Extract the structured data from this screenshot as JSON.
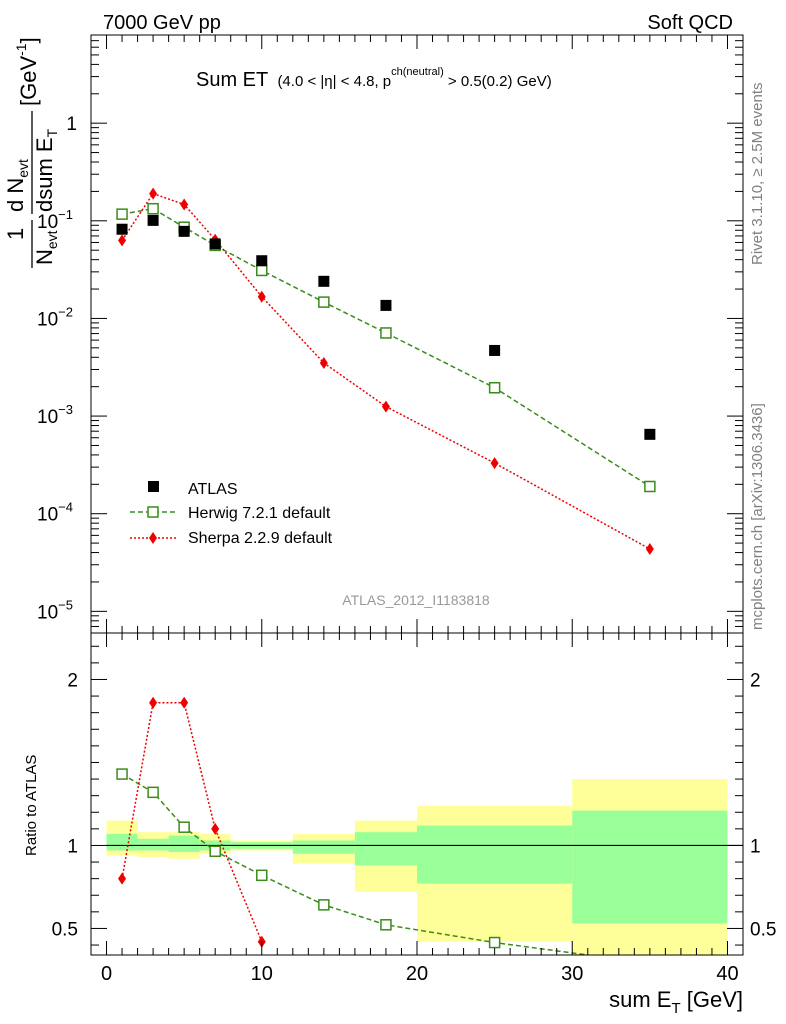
{
  "header": {
    "left": "7000 GeV pp",
    "right": "Soft QCD"
  },
  "side_labels": {
    "rivet": "Rivet 3.1.10, ≥ 2.5M events",
    "mcplots": "mcplots.cern.ch [arXiv:1306.3436]"
  },
  "colors": {
    "atlas": "#000000",
    "herwig": "#3a8c1a",
    "sherpa": "#ee0000",
    "band_inner": "#99ff99",
    "band_outer": "#ffff99"
  },
  "chart_data": [
    {
      "type": "scatter",
      "title": {
        "main": "Sum ET",
        "detail_a": "(4.0 < |",
        "eta": "η",
        "detail_b": "| < 4.8, p",
        "sup": "ch(neutral)",
        "detail_c": " > 0.5(0.2) GeV)"
      },
      "ylabel": {
        "one": "1",
        "n": "N",
        "evt": "evt",
        "d": "d N",
        "dsum": "dsum E",
        "t": "T",
        "unit": "[GeV",
        "exp": "-1",
        "close": "]"
      },
      "watermark": "ATLAS_2012_I1183818",
      "yscale": "log",
      "xlim": [
        -1,
        41
      ],
      "ylim": [
        6e-06,
        8
      ],
      "y_tick_labels": [
        {
          "v": 1e-05,
          "base": "10",
          "exp": "−5"
        },
        {
          "v": 0.0001,
          "base": "10",
          "exp": "−4"
        },
        {
          "v": 0.001,
          "base": "10",
          "exp": "−3"
        },
        {
          "v": 0.01,
          "base": "10",
          "exp": "−2"
        },
        {
          "v": 0.1,
          "base": "10",
          "exp": "−1"
        },
        {
          "v": 1,
          "base": "1",
          "exp": ""
        }
      ],
      "legend_position": "bottom-left",
      "series": [
        {
          "name": "ATLAS",
          "marker": "square-filled",
          "x": [
            1,
            3,
            5,
            7,
            10,
            14,
            18,
            25,
            35
          ],
          "y": [
            0.082,
            0.101,
            0.078,
            0.058,
            0.039,
            0.024,
            0.0136,
            0.0047,
            0.00065
          ]
        },
        {
          "name": "Herwig 7.2.1 default",
          "marker": "square-open",
          "line": "dashed",
          "x": [
            1,
            3,
            5,
            7,
            10,
            14,
            18,
            25,
            35
          ],
          "y": [
            0.117,
            0.133,
            0.086,
            0.056,
            0.031,
            0.0147,
            0.0071,
            0.00195,
            0.00019
          ]
        },
        {
          "name": "Sherpa 2.2.9 default",
          "marker": "diamond-filled",
          "line": "dotted",
          "x": [
            1,
            3,
            5,
            7,
            10,
            14,
            18,
            25,
            35
          ],
          "y": [
            0.063,
            0.19,
            0.147,
            0.064,
            0.0167,
            0.0035,
            0.00125,
            0.00033,
            4.35e-05
          ]
        }
      ]
    },
    {
      "type": "scatter",
      "ylabel": "Ratio to ATLAS",
      "xlabel": {
        "main": "sum E",
        "sub": "T",
        "unit": " [GeV]"
      },
      "xlim": [
        -1,
        41
      ],
      "ylim": [
        0.34,
        2.28
      ],
      "x_ticks": [
        "0",
        "10",
        "20",
        "30",
        "40"
      ],
      "x_tick_values": [
        0,
        10,
        20,
        30,
        40
      ],
      "y_ticks": [
        "0.5",
        "1",
        "2"
      ],
      "y_tick_values": [
        0.5,
        1,
        2
      ],
      "reference_line": 1,
      "bands": {
        "edges": [
          0,
          2,
          4,
          6,
          8,
          12,
          16,
          20,
          30,
          40
        ],
        "inner_lo": [
          0.97,
          0.97,
          0.96,
          0.97,
          0.98,
          0.95,
          0.88,
          0.77,
          0.53
        ],
        "inner_hi": [
          1.07,
          1.04,
          1.06,
          1.03,
          1.02,
          1.03,
          1.08,
          1.12,
          1.21
        ],
        "outer_lo": [
          0.94,
          0.93,
          0.92,
          0.95,
          0.97,
          0.89,
          0.72,
          0.42,
          0.34
        ],
        "outer_hi": [
          1.15,
          1.08,
          1.08,
          1.07,
          1.03,
          1.07,
          1.15,
          1.24,
          1.4
        ]
      },
      "series": [
        {
          "name": "Herwig 7.2.1 default",
          "x": [
            1,
            3,
            5,
            7,
            10,
            14,
            18,
            25,
            35
          ],
          "y": [
            1.43,
            1.32,
            1.11,
            0.965,
            0.82,
            0.642,
            0.522,
            0.415,
            0.29
          ]
        },
        {
          "name": "Sherpa 2.2.9 default",
          "x": [
            1,
            3,
            5,
            7,
            10
          ],
          "y": [
            0.8,
            1.86,
            1.86,
            1.1,
            0.42
          ]
        }
      ]
    }
  ]
}
